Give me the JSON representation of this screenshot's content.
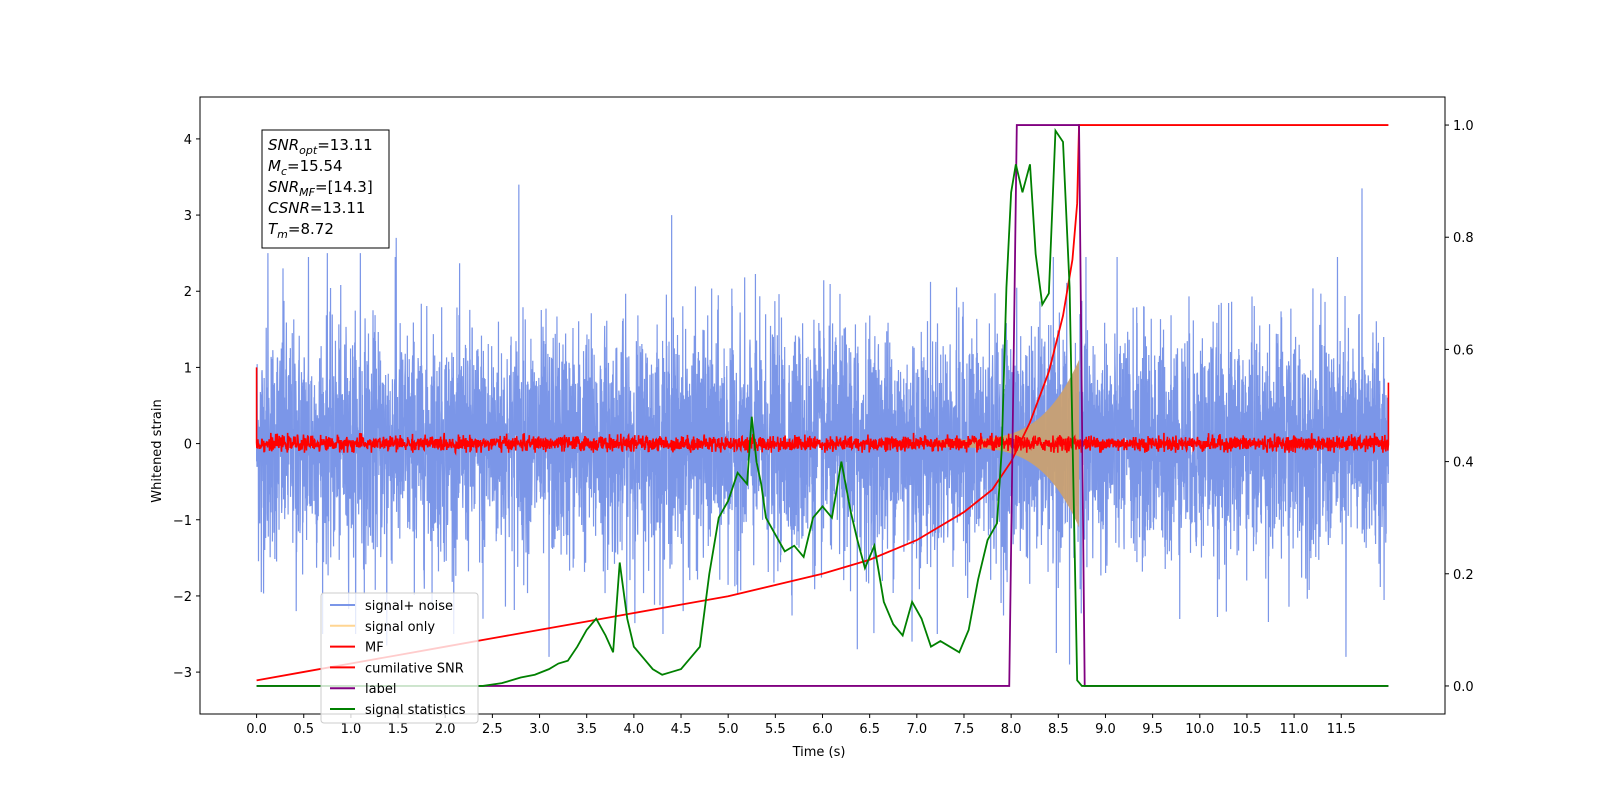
{
  "chart_data": {
    "type": "line",
    "xlabel": "Time (s)",
    "ylabel": "Whitened strain",
    "xlim": [
      -0.6,
      12.6
    ],
    "ylim": [
      -3.55,
      4.55
    ],
    "y2lim": [
      -0.05,
      1.05
    ],
    "x_ticks": [
      "0.0",
      "0.5",
      "1.0",
      "1.5",
      "2.0",
      "2.5",
      "3.0",
      "3.5",
      "4.0",
      "4.5",
      "5.0",
      "5.5",
      "6.0",
      "6.5",
      "7.0",
      "7.5",
      "8.0",
      "8.5",
      "9.0",
      "9.5",
      "10.0",
      "10.5",
      "11.0",
      "11.5"
    ],
    "y_ticks": [
      -3,
      -2,
      -1,
      0,
      1,
      2,
      3,
      4
    ],
    "y_tick_labels": [
      "−3",
      "−2",
      "−1",
      "0",
      "1",
      "2",
      "3",
      "4"
    ],
    "y2_ticks": [
      "0.0",
      "0.2",
      "0.4",
      "0.6",
      "0.8",
      "1.0"
    ],
    "annotation": [
      {
        "sym": "SNR",
        "sub": "opt",
        "val": "=13.11"
      },
      {
        "sym": "M",
        "sub": "c",
        "val": "=15.54"
      },
      {
        "sym": "SNR",
        "sub": "MF",
        "val": "=[14.3]"
      },
      {
        "sym": "CSNR",
        "sub": "",
        "val": "=13.11"
      },
      {
        "sym": "T",
        "sub": "m",
        "val": "=8.72"
      }
    ],
    "legend_position": "lower-left",
    "legend": [
      {
        "name": "signal+ noise",
        "color": "#7b96e8"
      },
      {
        "name": "signal only",
        "color": "#ffd592"
      },
      {
        "name": "MF",
        "color": "#ff0000"
      },
      {
        "name": "cumilative SNR",
        "color": "#ff0000"
      },
      {
        "name": "label",
        "color": "#800080"
      },
      {
        "name": "signal statistics",
        "color": "#008000"
      }
    ],
    "series": [
      {
        "name": "signal+ noise",
        "axis": "left",
        "color": "#7b96e8",
        "style": "noise",
        "x_range": [
          0,
          12
        ],
        "amplitude_std": 0.75,
        "peak_samples": [
          [
            0.05,
            -1.95
          ],
          [
            0.12,
            2.5
          ],
          [
            0.28,
            2.3
          ],
          [
            0.42,
            -2.2
          ],
          [
            0.55,
            2.45
          ],
          [
            0.75,
            2.5
          ],
          [
            1.1,
            2.5
          ],
          [
            1.38,
            -2.65
          ],
          [
            1.48,
            2.7
          ],
          [
            2.4,
            -2.3
          ],
          [
            2.78,
            3.4
          ],
          [
            3.1,
            -2.8
          ],
          [
            4.4,
            3.0
          ],
          [
            6.37,
            -2.7
          ],
          [
            6.95,
            -2.6
          ],
          [
            8.48,
            -2.75
          ],
          [
            8.62,
            -2.9
          ],
          [
            11.55,
            -2.8
          ],
          [
            11.72,
            3.35
          ]
        ]
      },
      {
        "name": "signal only",
        "axis": "left",
        "color": "#c9a072",
        "style": "chirp",
        "x_range": [
          7.2,
          8.72
        ],
        "amp_start": 0.05,
        "amp_end": 1.1
      },
      {
        "name": "MF",
        "axis": "left",
        "color": "#ff0000",
        "style": "noise",
        "x_range": [
          0,
          12
        ],
        "amplitude_std": 0.05,
        "edge_values": [
          [
            0.0,
            1.0
          ],
          [
            12.0,
            0.8
          ]
        ]
      },
      {
        "name": "cumilative SNR",
        "axis": "right",
        "color": "#ff0000",
        "x": [
          0,
          0.5,
          1,
          1.5,
          2,
          2.5,
          3,
          3.5,
          4,
          4.5,
          5,
          5.5,
          6,
          6.5,
          7,
          7.5,
          7.8,
          8.0,
          8.2,
          8.4,
          8.55,
          8.65,
          8.7,
          8.72,
          12
        ],
        "y": [
          0.01,
          0.025,
          0.04,
          0.055,
          0.07,
          0.085,
          0.1,
          0.115,
          0.13,
          0.145,
          0.16,
          0.18,
          0.2,
          0.225,
          0.26,
          0.31,
          0.35,
          0.4,
          0.47,
          0.56,
          0.66,
          0.76,
          0.86,
          1.0,
          1.0
        ]
      },
      {
        "name": "label",
        "axis": "right",
        "color": "#800080",
        "x": [
          0,
          7.98,
          8.06,
          8.72,
          8.78,
          12
        ],
        "y": [
          0,
          0,
          1,
          1,
          0,
          0
        ]
      },
      {
        "name": "signal statistics",
        "axis": "right",
        "color": "#008000",
        "x": [
          0,
          0.3,
          0.6,
          0.9,
          1.2,
          1.5,
          1.8,
          2.1,
          2.4,
          2.6,
          2.8,
          2.95,
          3.1,
          3.2,
          3.3,
          3.4,
          3.5,
          3.6,
          3.7,
          3.78,
          3.85,
          3.93,
          4.0,
          4.1,
          4.2,
          4.3,
          4.4,
          4.5,
          4.6,
          4.7,
          4.8,
          4.9,
          5.0,
          5.1,
          5.2,
          5.25,
          5.3,
          5.35,
          5.4,
          5.5,
          5.6,
          5.7,
          5.8,
          5.9,
          6.0,
          6.1,
          6.2,
          6.3,
          6.37,
          6.45,
          6.55,
          6.65,
          6.75,
          6.85,
          6.95,
          7.05,
          7.15,
          7.25,
          7.35,
          7.45,
          7.55,
          7.65,
          7.75,
          7.85,
          7.9,
          7.95,
          8.0,
          8.05,
          8.12,
          8.2,
          8.26,
          8.33,
          8.4,
          8.47,
          8.55,
          8.62,
          8.7,
          8.75,
          8.82,
          9.0,
          12
        ],
        "y": [
          0,
          0,
          0,
          0,
          0,
          0,
          0,
          0,
          0,
          0.005,
          0.015,
          0.02,
          0.03,
          0.04,
          0.045,
          0.07,
          0.1,
          0.12,
          0.09,
          0.06,
          0.22,
          0.12,
          0.07,
          0.05,
          0.03,
          0.02,
          0.025,
          0.03,
          0.05,
          0.07,
          0.2,
          0.3,
          0.33,
          0.38,
          0.36,
          0.48,
          0.4,
          0.36,
          0.3,
          0.27,
          0.24,
          0.25,
          0.23,
          0.3,
          0.32,
          0.3,
          0.4,
          0.31,
          0.26,
          0.21,
          0.25,
          0.15,
          0.11,
          0.09,
          0.15,
          0.12,
          0.07,
          0.08,
          0.07,
          0.06,
          0.1,
          0.19,
          0.26,
          0.29,
          0.42,
          0.71,
          0.88,
          0.93,
          0.88,
          0.93,
          0.77,
          0.68,
          0.7,
          0.99,
          0.97,
          0.71,
          0.01,
          0.0,
          0,
          0,
          0
        ]
      }
    ]
  }
}
